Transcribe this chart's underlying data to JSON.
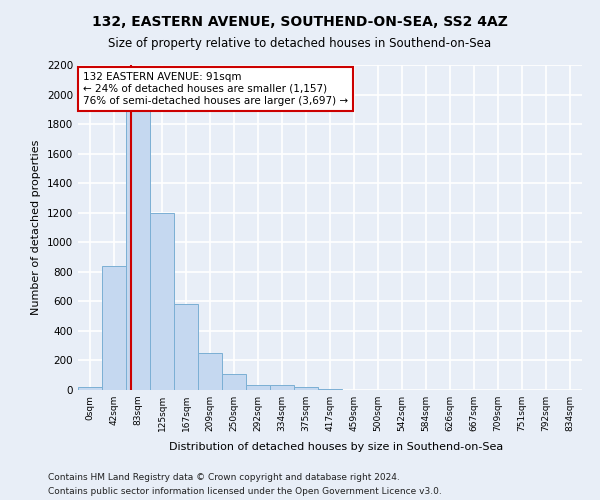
{
  "title1": "132, EASTERN AVENUE, SOUTHEND-ON-SEA, SS2 4AZ",
  "title2": "Size of property relative to detached houses in Southend-on-Sea",
  "xlabel": "Distribution of detached houses by size in Southend-on-Sea",
  "ylabel": "Number of detached properties",
  "bin_labels": [
    "0sqm",
    "42sqm",
    "83sqm",
    "125sqm",
    "167sqm",
    "209sqm",
    "250sqm",
    "292sqm",
    "334sqm",
    "375sqm",
    "417sqm",
    "459sqm",
    "500sqm",
    "542sqm",
    "584sqm",
    "626sqm",
    "667sqm",
    "709sqm",
    "751sqm",
    "792sqm",
    "834sqm"
  ],
  "bar_heights": [
    20,
    840,
    1900,
    1200,
    580,
    250,
    110,
    35,
    35,
    20,
    5,
    0,
    0,
    0,
    0,
    0,
    0,
    0,
    0,
    0,
    0
  ],
  "bar_color": "#c5d8f0",
  "bar_edge_color": "#7bafd4",
  "vline_color": "#cc0000",
  "annotation_text": "132 EASTERN AVENUE: 91sqm\n← 24% of detached houses are smaller (1,157)\n76% of semi-detached houses are larger (3,697) →",
  "annotation_box_color": "#ffffff",
  "annotation_box_edge": "#cc0000",
  "ylim": [
    0,
    2200
  ],
  "yticks": [
    0,
    200,
    400,
    600,
    800,
    1000,
    1200,
    1400,
    1600,
    1800,
    2000,
    2200
  ],
  "footer1": "Contains HM Land Registry data © Crown copyright and database right 2024.",
  "footer2": "Contains public sector information licensed under the Open Government Licence v3.0.",
  "bg_color": "#e8eef7",
  "grid_color": "#ffffff",
  "vline_x_bin": 2,
  "vline_x_offset": 0.19
}
